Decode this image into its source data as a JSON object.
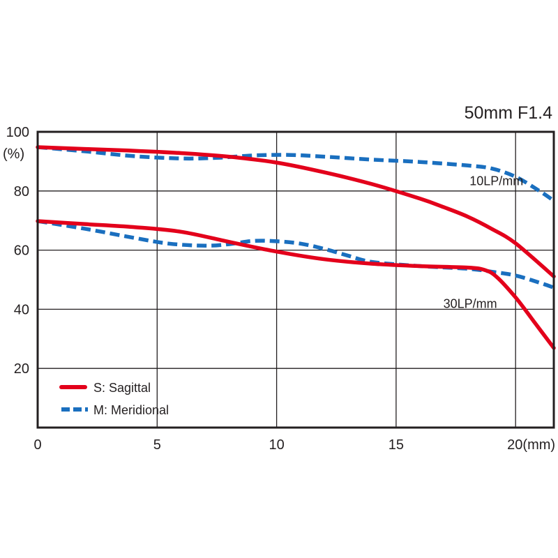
{
  "chart_data": {
    "type": "line",
    "title": "50mm F1.4",
    "xlabel": "(mm)",
    "ylabel": "(%)",
    "xlim": [
      0,
      21.6
    ],
    "ylim": [
      0,
      100
    ],
    "x_ticks": [
      0,
      5,
      10,
      15,
      20
    ],
    "x_tick_labels": [
      "0",
      "5",
      "10",
      "15",
      "20(mm)"
    ],
    "y_ticks": [
      20,
      40,
      60,
      80,
      100
    ],
    "y_tick_labels": [
      "20",
      "40",
      "60",
      "80",
      "100"
    ],
    "grid": true,
    "annotations": [
      {
        "text": "10LP/mm",
        "x": 19.2,
        "y": 82
      },
      {
        "text": "30LP/mm",
        "x": 18.1,
        "y": 40.5
      }
    ],
    "legend": {
      "position": "bottom-left",
      "entries": [
        {
          "label": "S: Sagittal",
          "color": "#e3001b",
          "style": "solid"
        },
        {
          "label": "M: Meridional",
          "color": "#1a6fbf",
          "style": "dashed"
        }
      ]
    },
    "series": [
      {
        "name": "S 10LP/mm",
        "type": "Sagittal",
        "color": "#e3001b",
        "style": "solid",
        "x": [
          0,
          2,
          4,
          6,
          8,
          10,
          12,
          14,
          16,
          17,
          18,
          19,
          20,
          21.6
        ],
        "y": [
          94.8,
          94.2,
          93.6,
          92.8,
          91.6,
          89.6,
          86.3,
          82.3,
          77.4,
          74.5,
          71.3,
          67.2,
          62.3,
          51.1
        ]
      },
      {
        "name": "M 10LP/mm",
        "type": "Meridional",
        "color": "#1a6fbf",
        "style": "dashed",
        "x": [
          0,
          2,
          4,
          6,
          7.5,
          9,
          10.5,
          12,
          14,
          16,
          18,
          19,
          20,
          21,
          21.6
        ],
        "y": [
          94.8,
          93.4,
          91.8,
          91.0,
          91.2,
          92.0,
          92.2,
          91.6,
          90.6,
          89.8,
          88.6,
          87.6,
          84.8,
          80.0,
          76.7
        ]
      },
      {
        "name": "S 30LP/mm",
        "type": "Sagittal",
        "color": "#e3001b",
        "style": "solid",
        "x": [
          0,
          2,
          4,
          6,
          8,
          10,
          12,
          14,
          16,
          18,
          18.7,
          19.2,
          20,
          20.8,
          21.6
        ],
        "y": [
          69.8,
          68.8,
          67.8,
          66.2,
          62.8,
          59.5,
          56.9,
          55.4,
          54.6,
          54.1,
          53.3,
          51.0,
          44.0,
          35.5,
          26.9
        ]
      },
      {
        "name": "M 30LP/mm",
        "type": "Meridional",
        "color": "#1a6fbf",
        "style": "dashed",
        "x": [
          0,
          2,
          4,
          5.5,
          7,
          8,
          9,
          10,
          11,
          12,
          13,
          14,
          16,
          18,
          19,
          20,
          21,
          21.6
        ],
        "y": [
          69.8,
          67.2,
          64.2,
          62.2,
          61.5,
          62.0,
          63.1,
          63.0,
          62.2,
          60.4,
          58.1,
          56.0,
          54.6,
          53.7,
          52.7,
          51.4,
          49.0,
          47.3
        ]
      }
    ]
  }
}
